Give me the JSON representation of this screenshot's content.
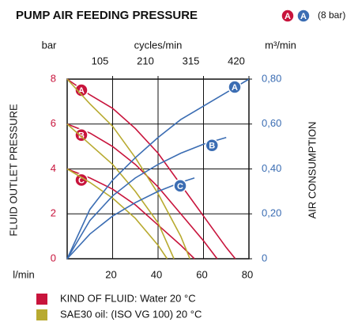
{
  "chart_data": {
    "type": "line",
    "title": "PUMP AIR FEEDING PRESSURE",
    "note_badges": [
      {
        "text": "A",
        "color": "#c8143c"
      },
      {
        "text": "A",
        "color": "#3b6db3"
      }
    ],
    "note": "(8 bar)",
    "ylabel_unit": "bar",
    "y2label_unit": "m³/min",
    "x2label": "cycles/min",
    "xlabel_unit": "l/min",
    "ylabel": "FLUID OUTLET PRESSURE",
    "y2label": "AIR CONSUMPTION",
    "xlim": [
      0,
      80
    ],
    "xticks": [
      20,
      40,
      60,
      80
    ],
    "x2lim": [
      0,
      420
    ],
    "x2ticks": [
      105,
      210,
      315,
      420
    ],
    "ylim": [
      0,
      8
    ],
    "yticks": [
      0,
      2,
      4,
      6,
      8
    ],
    "ycolor": "#c8143c",
    "y2lim": [
      0,
      0.8
    ],
    "y2ticks": [
      0,
      {
        "value": 0.2,
        "label": "0,20"
      },
      {
        "value": 0.4,
        "label": "0,40"
      },
      {
        "value": 0.6,
        "label": "0,60"
      },
      {
        "value": 0.8,
        "label": "0,80"
      }
    ],
    "y2color": "#3b6db3",
    "grid": true,
    "legend": [
      {
        "label": "KIND OF FLUID: Water 20 °C",
        "color": "#c8143c"
      },
      {
        "label": "SAE30 oil: (ISO VG 100) 20 °C",
        "color": "#b8aa30"
      }
    ],
    "series": [
      {
        "label": "A",
        "color": "#c8143c",
        "x": [
          0,
          10,
          20,
          30,
          40,
          50,
          60,
          70,
          74
        ],
        "values": [
          8,
          7.3,
          6.7,
          5.8,
          4.7,
          3.3,
          1.9,
          0.5,
          0
        ]
      },
      {
        "label": "B",
        "color": "#c8143c",
        "x": [
          0,
          10,
          20,
          30,
          40,
          50,
          60,
          66
        ],
        "values": [
          6,
          5.6,
          5.0,
          4.2,
          3.2,
          2.0,
          0.8,
          0
        ]
      },
      {
        "label": "C",
        "color": "#c8143c",
        "x": [
          0,
          10,
          20,
          30,
          40,
          50,
          56
        ],
        "values": [
          4,
          3.6,
          3.1,
          2.4,
          1.5,
          0.6,
          0
        ]
      },
      {
        "color": "#b8aa30",
        "x": [
          0,
          10,
          20,
          30,
          40,
          50,
          54
        ],
        "values": [
          8,
          6.9,
          5.9,
          4.5,
          2.9,
          1.0,
          0
        ]
      },
      {
        "color": "#b8aa30",
        "x": [
          0,
          10,
          20,
          30,
          40,
          47
        ],
        "values": [
          6,
          5.1,
          4.2,
          3.0,
          1.6,
          0
        ]
      },
      {
        "color": "#b8aa30",
        "x": [
          0,
          10,
          20,
          30,
          40,
          44
        ],
        "values": [
          4,
          3.4,
          2.7,
          1.8,
          0.6,
          0
        ]
      },
      {
        "label": "A",
        "color": "#3b6db3",
        "axis": "y2",
        "x": [
          0,
          10,
          20,
          30,
          40,
          50,
          60,
          70,
          80
        ],
        "values": [
          0,
          0.22,
          0.35,
          0.45,
          0.54,
          0.62,
          0.68,
          0.74,
          0.8
        ]
      },
      {
        "label": "B",
        "color": "#3b6db3",
        "axis": "y2",
        "x": [
          0,
          10,
          20,
          30,
          40,
          50,
          60,
          70
        ],
        "values": [
          0,
          0.17,
          0.28,
          0.36,
          0.42,
          0.47,
          0.51,
          0.54
        ]
      },
      {
        "label": "C",
        "color": "#3b6db3",
        "axis": "y2",
        "x": [
          0,
          10,
          20,
          30,
          40,
          50,
          56
        ],
        "values": [
          0,
          0.11,
          0.19,
          0.25,
          0.3,
          0.34,
          0.36
        ]
      }
    ]
  }
}
